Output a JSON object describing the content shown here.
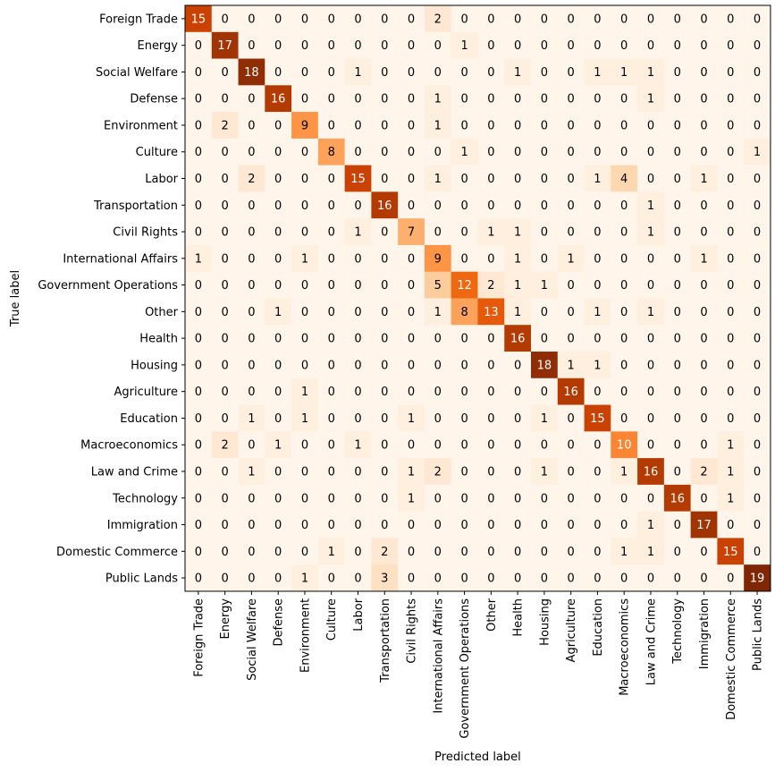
{
  "chart_data": {
    "type": "heatmap",
    "title": "",
    "xlabel": "Predicted label",
    "ylabel": "True label",
    "categories": [
      "Foreign Trade",
      "Energy",
      "Social Welfare",
      "Defense",
      "Environment",
      "Culture",
      "Labor",
      "Transportation",
      "Civil Rights",
      "International Affairs",
      "Government Operations",
      "Other",
      "Health",
      "Housing",
      "Agriculture",
      "Education",
      "Macroeconomics",
      "Law and Crime",
      "Technology",
      "Immigration",
      "Domestic Commerce",
      "Public Lands"
    ],
    "matrix": [
      [
        15,
        0,
        0,
        0,
        0,
        0,
        0,
        0,
        0,
        2,
        0,
        0,
        0,
        0,
        0,
        0,
        0,
        0,
        0,
        0,
        0,
        0
      ],
      [
        0,
        17,
        0,
        0,
        0,
        0,
        0,
        0,
        0,
        0,
        1,
        0,
        0,
        0,
        0,
        0,
        0,
        0,
        0,
        0,
        0,
        0
      ],
      [
        0,
        0,
        18,
        0,
        0,
        0,
        1,
        0,
        0,
        0,
        0,
        0,
        1,
        0,
        0,
        1,
        1,
        1,
        0,
        0,
        0,
        0
      ],
      [
        0,
        0,
        0,
        16,
        0,
        0,
        0,
        0,
        0,
        1,
        0,
        0,
        0,
        0,
        0,
        0,
        0,
        1,
        0,
        0,
        0,
        0
      ],
      [
        0,
        2,
        0,
        0,
        9,
        0,
        0,
        0,
        0,
        1,
        0,
        0,
        0,
        0,
        0,
        0,
        0,
        0,
        0,
        0,
        0,
        0
      ],
      [
        0,
        0,
        0,
        0,
        0,
        8,
        0,
        0,
        0,
        0,
        1,
        0,
        0,
        0,
        0,
        0,
        0,
        0,
        0,
        0,
        0,
        1
      ],
      [
        0,
        0,
        2,
        0,
        0,
        0,
        15,
        0,
        0,
        1,
        0,
        0,
        0,
        0,
        0,
        1,
        4,
        0,
        0,
        1,
        0,
        0
      ],
      [
        0,
        0,
        0,
        0,
        0,
        0,
        0,
        16,
        0,
        0,
        0,
        0,
        0,
        0,
        0,
        0,
        0,
        1,
        0,
        0,
        0,
        0
      ],
      [
        0,
        0,
        0,
        0,
        0,
        0,
        1,
        0,
        7,
        0,
        0,
        1,
        1,
        0,
        0,
        0,
        0,
        1,
        0,
        0,
        0,
        0
      ],
      [
        1,
        0,
        0,
        0,
        1,
        0,
        0,
        0,
        0,
        9,
        0,
        0,
        1,
        0,
        1,
        0,
        0,
        0,
        0,
        1,
        0,
        0
      ],
      [
        0,
        0,
        0,
        0,
        0,
        0,
        0,
        0,
        0,
        5,
        12,
        2,
        1,
        1,
        0,
        0,
        0,
        0,
        0,
        0,
        0,
        0
      ],
      [
        0,
        0,
        0,
        1,
        0,
        0,
        0,
        0,
        0,
        1,
        8,
        13,
        1,
        0,
        0,
        1,
        0,
        1,
        0,
        0,
        0,
        0
      ],
      [
        0,
        0,
        0,
        0,
        0,
        0,
        0,
        0,
        0,
        0,
        0,
        0,
        16,
        0,
        0,
        0,
        0,
        0,
        0,
        0,
        0,
        0
      ],
      [
        0,
        0,
        0,
        0,
        0,
        0,
        0,
        0,
        0,
        0,
        0,
        0,
        0,
        18,
        1,
        1,
        0,
        0,
        0,
        0,
        0,
        0
      ],
      [
        0,
        0,
        0,
        0,
        1,
        0,
        0,
        0,
        0,
        0,
        0,
        0,
        0,
        0,
        16,
        0,
        0,
        0,
        0,
        0,
        0,
        0
      ],
      [
        0,
        0,
        1,
        0,
        1,
        0,
        0,
        0,
        1,
        0,
        0,
        0,
        0,
        1,
        0,
        15,
        0,
        0,
        0,
        0,
        0,
        0
      ],
      [
        0,
        2,
        0,
        1,
        0,
        0,
        1,
        0,
        0,
        0,
        0,
        0,
        0,
        0,
        0,
        0,
        10,
        0,
        0,
        0,
        1,
        0
      ],
      [
        0,
        0,
        1,
        0,
        0,
        0,
        0,
        0,
        1,
        2,
        0,
        0,
        0,
        1,
        0,
        0,
        1,
        16,
        0,
        2,
        1,
        0
      ],
      [
        0,
        0,
        0,
        0,
        0,
        0,
        0,
        0,
        1,
        0,
        0,
        0,
        0,
        0,
        0,
        0,
        0,
        0,
        16,
        0,
        1,
        0
      ],
      [
        0,
        0,
        0,
        0,
        0,
        0,
        0,
        0,
        0,
        0,
        0,
        0,
        0,
        0,
        0,
        0,
        0,
        1,
        0,
        17,
        0,
        0
      ],
      [
        0,
        0,
        0,
        0,
        0,
        1,
        0,
        2,
        0,
        0,
        0,
        0,
        0,
        0,
        0,
        0,
        1,
        1,
        0,
        0,
        15,
        0
      ],
      [
        0,
        0,
        0,
        0,
        1,
        0,
        0,
        3,
        0,
        0,
        0,
        0,
        0,
        0,
        0,
        0,
        0,
        0,
        0,
        0,
        0,
        19
      ]
    ],
    "vmin": 0,
    "vmax": 19,
    "colormap": "Oranges",
    "text_color_light": "#ffffff",
    "text_color_dark": "#000000"
  }
}
